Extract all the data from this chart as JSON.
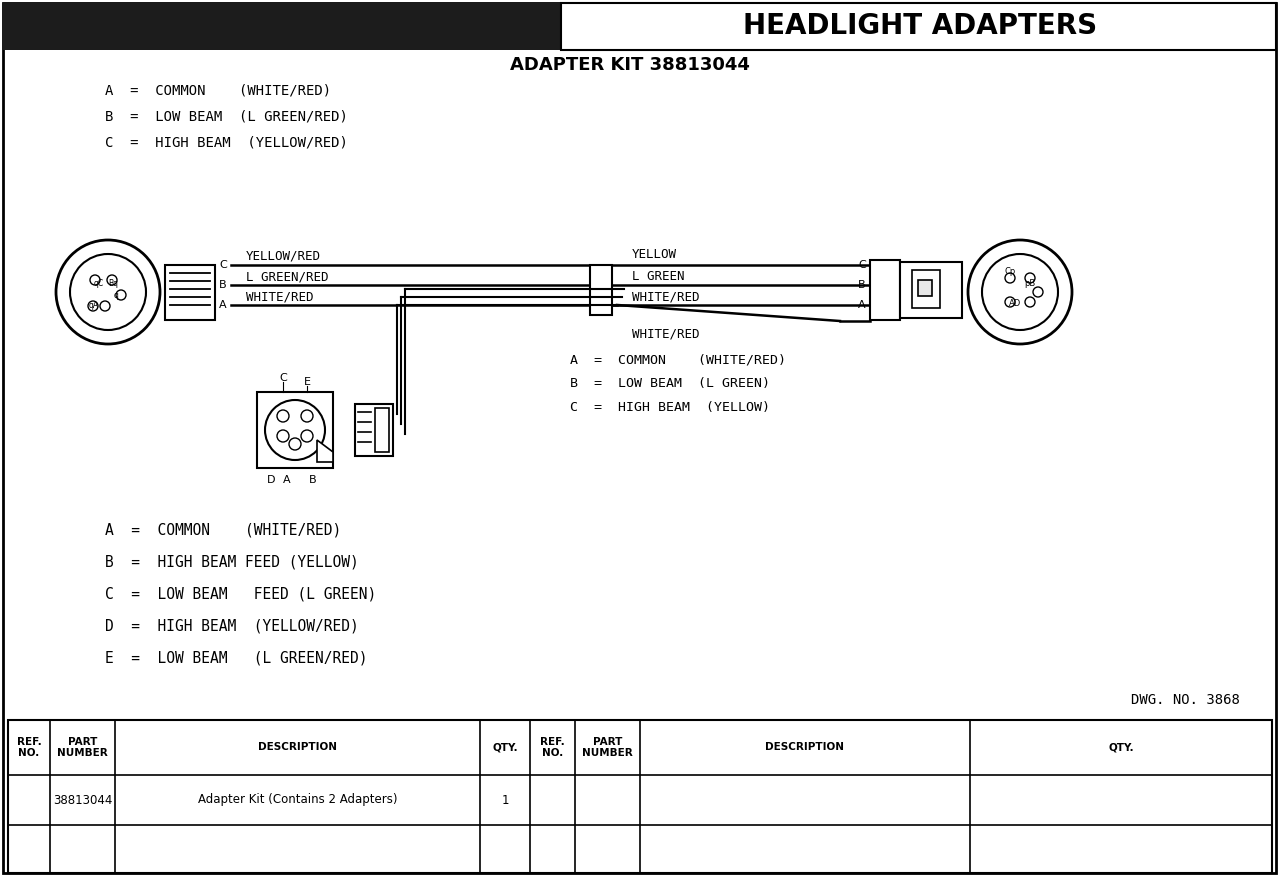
{
  "title": "HEADLIGHT ADAPTERS",
  "adapter_kit_label": "ADAPTER KIT 38813044",
  "left_legend": [
    "A  =  COMMON    (WHITE/RED)",
    "B  =  LOW BEAM  (L GREEN/RED)",
    "C  =  HIGH BEAM  (YELLOW/RED)"
  ],
  "right_legend": [
    "A  =  COMMON    (WHITE/RED)",
    "B  =  LOW BEAM  (L GREEN)",
    "C  =  HIGH BEAM  (YELLOW)"
  ],
  "bottom_legend": [
    "A  =  COMMON    (WHITE/RED)",
    "B  =  HIGH BEAM FEED (YELLOW)",
    "C  =  LOW BEAM   FEED (L GREEN)",
    "D  =  HIGH BEAM  (YELLOW/RED)",
    "E  =  LOW BEAM   (L GREEN/RED)"
  ],
  "wire_labels_left": [
    "YELLOW/RED",
    "L GREEN/RED",
    "WHITE/RED"
  ],
  "wire_labels_right": [
    "YELLOW",
    "L GREEN",
    "WHITE/RED",
    "WHITE/RED"
  ],
  "dwg_no": "DWG. NO. 3868",
  "bg_color": "#ffffff",
  "header_bg_left": "#1c1c1c",
  "text_color": "#000000"
}
